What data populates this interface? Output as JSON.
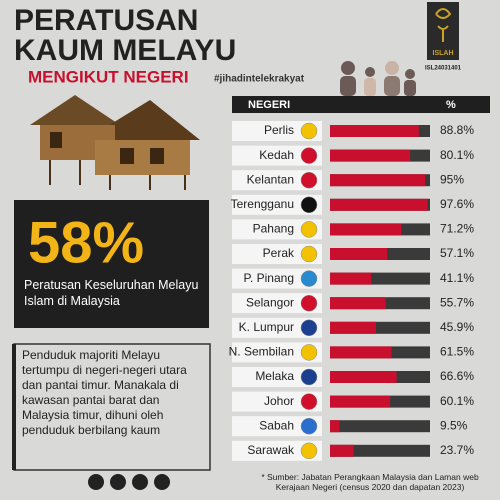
{
  "header": {
    "line1": "PERATUSAN",
    "line2": "KAUM MELAYU",
    "line3": "MENGIKUT NEGERI",
    "hashtag": "#jihadintelekrakyat"
  },
  "logo": {
    "name": "ISLAH",
    "code": "ISL24031401"
  },
  "stat": {
    "value": "58%",
    "caption": "Peratusan Keseluruhan Melayu Islam di Malaysia"
  },
  "note": "Penduduk majoriti Melayu tertumpu di negeri-negeri utara dan pantai timur. Manakala di kawasan pantai barat dan Malaysia timur, dihuni oleh penduduk berbilang kaum",
  "source": "* Sumber: Jabatan Perangkaan Malaysia dan Laman web Kerajaan Negeri (census 2020 dan dapatan 2023)",
  "chart_data": {
    "type": "bar",
    "orientation": "horizontal",
    "category_header": "NEGERI",
    "value_header": "%",
    "categories": [
      "Perlis",
      "Kedah",
      "Kelantan",
      "Terengganu",
      "Pahang",
      "Perak",
      "P. Pinang",
      "Selangor",
      "K. Lumpur",
      "N. Sembilan",
      "Melaka",
      "Johor",
      "Sabah",
      "Sarawak"
    ],
    "values": [
      88.8,
      80.1,
      95,
      97.6,
      71.2,
      57.1,
      41.1,
      55.7,
      45.9,
      61.5,
      66.6,
      60.1,
      9.5,
      23.7
    ],
    "value_labels": [
      "88.8%",
      "80.1%",
      "95%",
      "97.6%",
      "71.2%",
      "57.1%",
      "41.1%",
      "55.7%",
      "45.9%",
      "61.5%",
      "66.6%",
      "60.1%",
      "9.5%",
      "23.7%"
    ],
    "color": "#c8102e",
    "track_color": "#3a3a3a",
    "xlim": [
      0,
      100
    ]
  }
}
